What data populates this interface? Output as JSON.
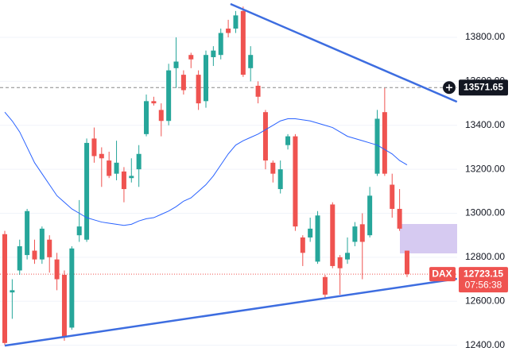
{
  "chart_data": {
    "type": "candlestick",
    "open": [
      12905,
      12640,
      12740,
      12810,
      12830,
      12790,
      12880,
      12790,
      12720,
      12480,
      12900,
      12880,
      13340,
      13270,
      13240,
      13180,
      13190,
      13160,
      13200,
      13360,
      13510,
      13470,
      13420,
      13660,
      13630,
      13720,
      13630,
      13510,
      13710,
      13720,
      13840,
      13840,
      13920,
      13660,
      13580,
      13460,
      13230,
      13110,
      13310,
      13350,
      12890,
      12890,
      12780,
      12710,
      13040,
      12800,
      12790,
      12870,
      12950,
      12900,
      13180,
      13460,
      13130,
      13020,
      12830
    ],
    "high": [
      12920,
      12700,
      12880,
      13020,
      12880,
      12940,
      12900,
      12820,
      12740,
      12850,
      13060,
      13340,
      13390,
      13300,
      13280,
      13330,
      13210,
      13250,
      13310,
      13540,
      13530,
      13500,
      13680,
      13800,
      13650,
      13730,
      13650,
      13740,
      13760,
      13840,
      13880,
      13920,
      13940,
      13760,
      13600,
      13470,
      13240,
      13240,
      13360,
      13360,
      12900,
      12980,
      13010,
      12720,
      13050,
      12810,
      12890,
      12960,
      13000,
      13120,
      13470,
      13570,
      13180,
      13110,
      12830
    ],
    "low": [
      12400,
      12520,
      12720,
      12790,
      12770,
      12770,
      12730,
      12650,
      12420,
      12470,
      12870,
      12870,
      13230,
      13120,
      13160,
      13150,
      13050,
      13140,
      13120,
      13350,
      13490,
      13350,
      13400,
      13570,
      13540,
      13660,
      13470,
      13480,
      13670,
      13700,
      13800,
      13820,
      13620,
      13600,
      13500,
      13200,
      13140,
      13090,
      13290,
      12920,
      12760,
      12870,
      12770,
      12610,
      12750,
      12630,
      12770,
      12850,
      12700,
      12890,
      13170,
      13170,
      12980,
      12920,
      12710
    ],
    "close": [
      12410,
      12650,
      12850,
      13010,
      12790,
      12930,
      12800,
      12700,
      12440,
      12840,
      12940,
      13320,
      13260,
      13250,
      13170,
      13230,
      13110,
      13170,
      13270,
      13510,
      13500,
      13420,
      13650,
      13690,
      13560,
      13700,
      13500,
      13720,
      13740,
      13820,
      13820,
      13900,
      13630,
      13720,
      13530,
      13240,
      13180,
      13200,
      13350,
      12940,
      12820,
      12930,
      12990,
      12630,
      12760,
      12750,
      12820,
      12940,
      12870,
      13080,
      13430,
      13180,
      13020,
      12930,
      12723.15
    ],
    "moving_average": [
      13460,
      13420,
      13370,
      13300,
      13230,
      13180,
      13130,
      13080,
      13050,
      13020,
      13000,
      12980,
      12970,
      12960,
      12955,
      12950,
      12945,
      12950,
      12965,
      12975,
      12980,
      12995,
      13010,
      13030,
      13055,
      13070,
      13100,
      13130,
      13170,
      13220,
      13270,
      13310,
      13330,
      13345,
      13360,
      13380,
      13400,
      13420,
      13430,
      13430,
      13425,
      13420,
      13410,
      13400,
      13390,
      13370,
      13350,
      13340,
      13330,
      13320,
      13310,
      13290,
      13270,
      13240,
      13220
    ],
    "trendlines": [
      {
        "x": [
          30.3,
          60.7
        ],
        "values": [
          13952,
          13507
        ]
      },
      {
        "x": [
          0,
          60.7
        ],
        "values": [
          12398,
          12702
        ]
      }
    ],
    "ylim": [
      12319,
      13970
    ],
    "yticks": [
      {
        "value": 12400,
        "label": "12400.00"
      },
      {
        "value": 12600,
        "label": "12600.00"
      },
      {
        "value": 12800,
        "label": "12800.00"
      },
      {
        "value": 13000,
        "label": "13000.00"
      },
      {
        "value": 13200,
        "label": "13200.00"
      },
      {
        "value": 13400,
        "label": "13400.00"
      },
      {
        "value": 13600,
        "label": "13600.00"
      },
      {
        "value": 13800,
        "label": "13800.00"
      }
    ],
    "marked_price": {
      "value": 13571.65,
      "label": "13571.65"
    },
    "last_price": {
      "value": 12723.15,
      "label": "12723.15"
    },
    "countdown": "07:56:38",
    "symbol": "DAX"
  }
}
